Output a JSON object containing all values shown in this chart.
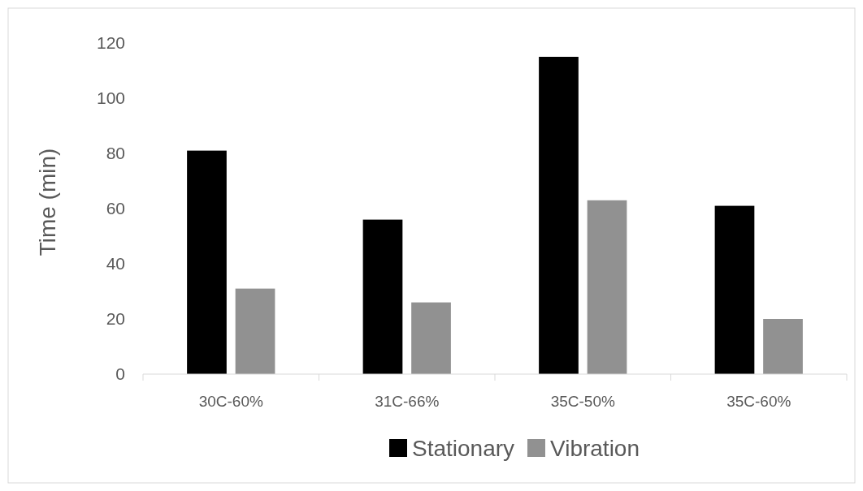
{
  "chart_data": {
    "type": "bar",
    "ylabel": "Time (min)",
    "categories": [
      "30C-60%",
      "31C-66%",
      "35C-50%",
      "35C-60%"
    ],
    "series": [
      {
        "name": "Stationary",
        "color": "#000000",
        "values": [
          81,
          56,
          115,
          61
        ]
      },
      {
        "name": "Vibration",
        "color": "#919191",
        "values": [
          31,
          26,
          63,
          20
        ]
      }
    ],
    "ylim": [
      0,
      120
    ],
    "yticks": [
      0,
      20,
      40,
      60,
      80,
      100,
      120
    ],
    "grid": false,
    "legend": "bottom"
  }
}
